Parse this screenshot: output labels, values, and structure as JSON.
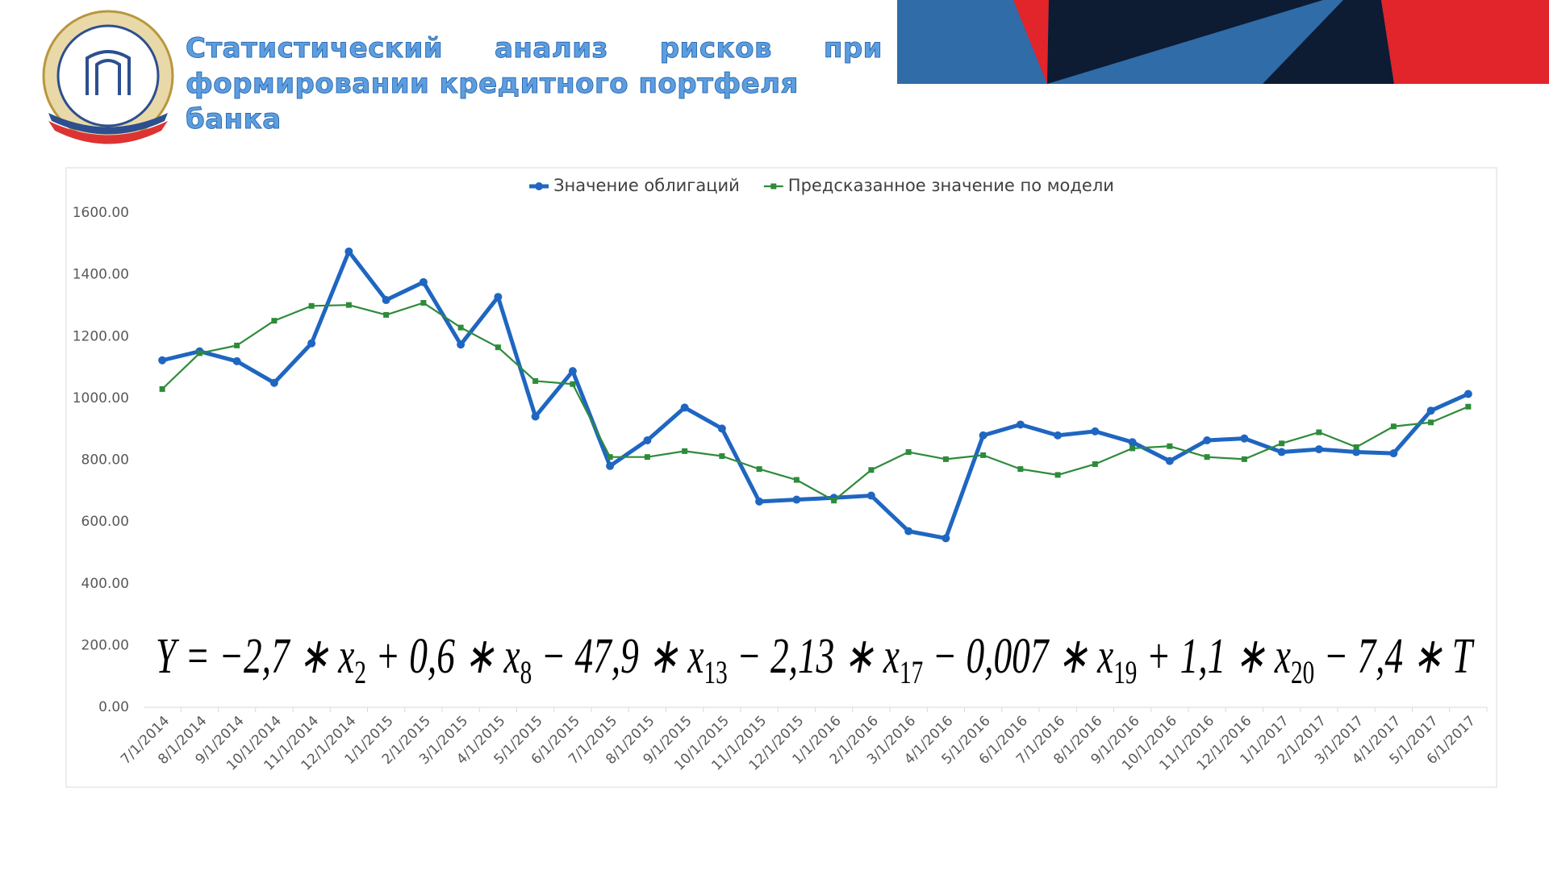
{
  "header": {
    "title_lines": [
      "Статистический анализ рисков при",
      "формировании кредитного портфеля банка"
    ]
  },
  "chart_data": {
    "type": "line",
    "categories": [
      "7/1/2014",
      "8/1/2014",
      "9/1/2014",
      "10/1/2014",
      "11/1/2014",
      "12/1/2014",
      "1/1/2015",
      "2/1/2015",
      "3/1/2015",
      "4/1/2015",
      "5/1/2015",
      "6/1/2015",
      "7/1/2015",
      "8/1/2015",
      "9/1/2015",
      "10/1/2015",
      "11/1/2015",
      "12/1/2015",
      "1/1/2016",
      "2/1/2016",
      "3/1/2016",
      "4/1/2016",
      "5/1/2016",
      "6/1/2016",
      "7/1/2016",
      "8/1/2016",
      "9/1/2016",
      "10/1/2016",
      "11/1/2016",
      "12/1/2016",
      "1/1/2017",
      "2/1/2017",
      "3/1/2017",
      "4/1/2017",
      "5/1/2017",
      "6/1/2017"
    ],
    "series": [
      {
        "name": "Значение облигаций",
        "color": "#1f66c1",
        "marker": "circle",
        "values": [
          1123,
          1152,
          1120,
          1050,
          1178,
          1475,
          1318,
          1376,
          1174,
          1328,
          941,
          1088,
          781,
          864,
          970,
          902,
          666,
          672,
          678,
          685,
          570,
          547,
          880,
          915,
          880,
          893,
          858,
          797,
          864,
          870,
          826,
          835,
          826,
          822,
          960,
          1014
        ]
      },
      {
        "name": "Предсказанное значение по модели",
        "color": "#2e8b3a",
        "marker": "square",
        "values": [
          1030,
          1146,
          1171,
          1251,
          1299,
          1302,
          1270,
          1309,
          1229,
          1165,
          1056,
          1046,
          810,
          810,
          829,
          813,
          771,
          736,
          669,
          768,
          826,
          803,
          816,
          771,
          752,
          787,
          838,
          845,
          810,
          803,
          854,
          890,
          842,
          909,
          922,
          973
        ]
      }
    ],
    "ylim": [
      0,
      1600
    ],
    "yticks": [
      {
        "value": 0,
        "label": "0.00"
      },
      {
        "value": 200,
        "label": "200.00"
      },
      {
        "value": 400,
        "label": "400.00"
      },
      {
        "value": 600,
        "label": "600.00"
      },
      {
        "value": 800,
        "label": "800.00"
      },
      {
        "value": 1000,
        "label": "1000.00"
      },
      {
        "value": 1200,
        "label": "1200.00"
      },
      {
        "value": 1400,
        "label": "1400.00"
      },
      {
        "value": 1600,
        "label": "1600.00"
      }
    ],
    "grid": false,
    "legend": "top",
    "annotation": [
      "Y = −2,7 ∗ x",
      "2",
      " + 0,6 ∗ x",
      "8",
      " − 47,9 ∗ x",
      "13",
      " − 2,13 ∗ x",
      "17",
      " − 0,007 ∗ x",
      "19",
      " + 1,1 ∗ x",
      "20",
      " − 7,4 ∗ T"
    ]
  }
}
